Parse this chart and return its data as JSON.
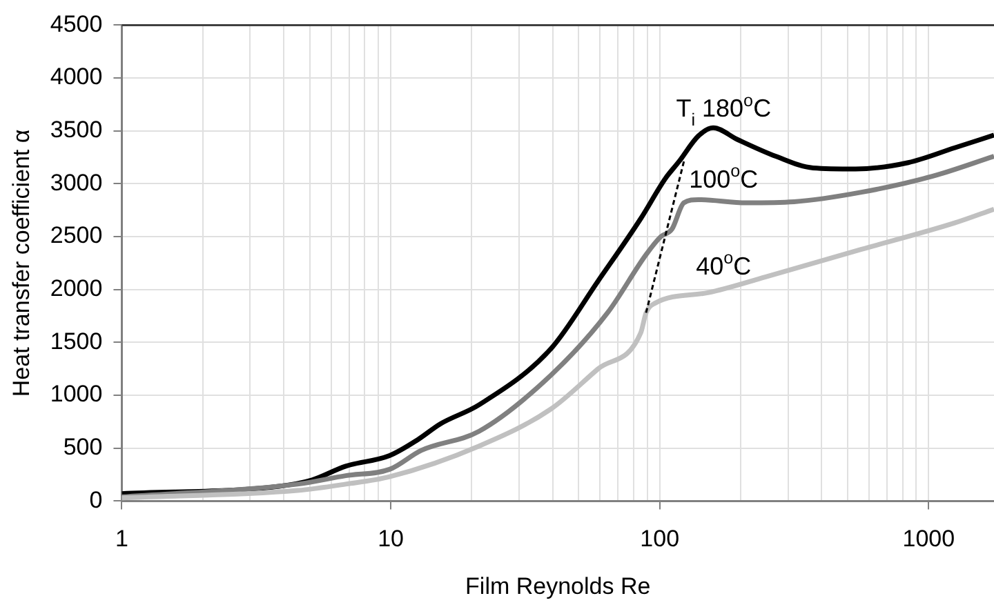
{
  "chart_data": {
    "type": "line",
    "xlabel": "Film Reynolds Re",
    "ylabel": "Heat transfer coefficient α",
    "log": "x",
    "grid": true,
    "legend": false,
    "marker": "none",
    "line_style": "solid",
    "xlim": [
      1,
      1750
    ],
    "ylim": [
      0,
      4500
    ],
    "xticks": [
      1,
      {
        "value": 2,
        "label": null
      },
      {
        "value": 3,
        "label": null
      },
      {
        "value": 4,
        "label": null
      },
      {
        "value": 5,
        "label": null
      },
      {
        "value": 6,
        "label": null
      },
      {
        "value": 7,
        "label": null
      },
      {
        "value": 8,
        "label": null
      },
      {
        "value": 9,
        "label": null
      },
      10,
      {
        "value": 20,
        "label": null
      },
      {
        "value": 30,
        "label": null
      },
      {
        "value": 40,
        "label": null
      },
      {
        "value": 50,
        "label": null
      },
      {
        "value": 60,
        "label": null
      },
      {
        "value": 70,
        "label": null
      },
      {
        "value": 80,
        "label": null
      },
      {
        "value": 90,
        "label": null
      },
      100,
      {
        "value": 200,
        "label": null
      },
      {
        "value": 300,
        "label": null
      },
      {
        "value": 400,
        "label": null
      },
      {
        "value": 500,
        "label": null
      },
      {
        "value": 600,
        "label": null
      },
      {
        "value": 700,
        "label": null
      },
      {
        "value": 800,
        "label": null
      },
      {
        "value": 900,
        "label": null
      },
      1000
    ],
    "yticks": [
      0,
      500,
      1000,
      1500,
      2000,
      2500,
      3000,
      3500,
      4000,
      4500
    ],
    "series": [
      {
        "name": "T$_{i}$ 180$^{o}$C",
        "color": "#000000",
        "x": [
          1,
          3.85,
          5.1,
          6.8,
          9.9,
          12.6,
          15.3,
          21.3,
          39.4,
          59,
          85,
          105,
          118,
          139,
          158,
          194,
          270,
          372,
          535,
          840,
          1250,
          1750
        ],
        "values": [
          70,
          140,
          200,
          330,
          430,
          580,
          730,
          910,
          1440,
          2080,
          2670,
          3050,
          3210,
          3450,
          3530,
          3420,
          3260,
          3150,
          3140,
          3200,
          3340,
          3460
        ]
      },
      {
        "name": "100$^{o}$C",
        "color": "#808080",
        "x": [
          1,
          4.5,
          6.8,
          9.9,
          13,
          21.3,
          39.4,
          64,
          89,
          101,
          111,
          123,
          139,
          210,
          316,
          563,
          1030,
          1750
        ],
        "values": [
          40,
          160,
          240,
          300,
          480,
          660,
          1190,
          1780,
          2330,
          2500,
          2570,
          2820,
          2850,
          2820,
          2830,
          2920,
          3070,
          3260
        ]
      },
      {
        "name": "40$^{o}$C",
        "color": "#c0c0c0",
        "x": [
          1,
          4.5,
          6.8,
          9.9,
          21.3,
          39.4,
          59,
          85,
          89,
          96,
          151,
          248,
          563,
          1250,
          1750
        ],
        "values": [
          30,
          100,
          160,
          230,
          520,
          870,
          1250,
          1590,
          1780,
          1870,
          1970,
          2120,
          2380,
          2630,
          2760
        ]
      },
      {
        "color": "#000000",
        "line_style": "dashed",
        "x": [
          123,
          89
        ],
        "values": [
          3210,
          1780
        ]
      }
    ]
  }
}
